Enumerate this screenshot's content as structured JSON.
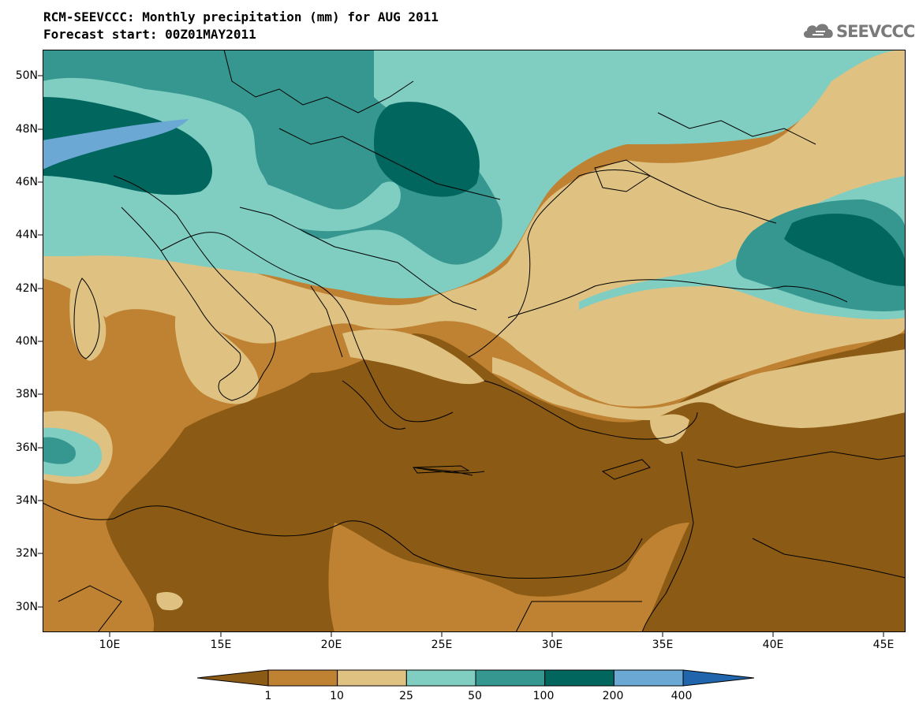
{
  "title": {
    "line1": "RCM-SEEVCCC: Monthly precipitation (mm) for AUG 2011",
    "line2": "Forecast start: 00Z01MAY2011"
  },
  "logo": {
    "text": "SEEVCCC",
    "icon": "cloud-icon"
  },
  "axes": {
    "lat_labels": [
      "50N",
      "48N",
      "46N",
      "44N",
      "42N",
      "40N",
      "38N",
      "36N",
      "34N",
      "32N",
      "30N"
    ],
    "lon_labels": [
      "10E",
      "15E",
      "20E",
      "25E",
      "30E",
      "35E",
      "40E",
      "45E"
    ],
    "lon_range": [
      7,
      46
    ],
    "lat_range": [
      29,
      51
    ]
  },
  "colorbar": {
    "labels": [
      "1",
      "10",
      "25",
      "50",
      "100",
      "200",
      "400"
    ],
    "colors": [
      "#8b5a14",
      "#bf8232",
      "#dfc281",
      "#80cdc1",
      "#35978f",
      "#01665e",
      "#6ba9d4",
      "#2166ac"
    ],
    "unit": "mm"
  },
  "colors": {
    "dry_dark": "#8b5a14",
    "dry": "#bf8232",
    "light_dry": "#dfc281",
    "light_wet": "#80cdc1",
    "wet": "#35978f",
    "very_wet": "#01665e",
    "extreme": "#6ba9d4"
  }
}
